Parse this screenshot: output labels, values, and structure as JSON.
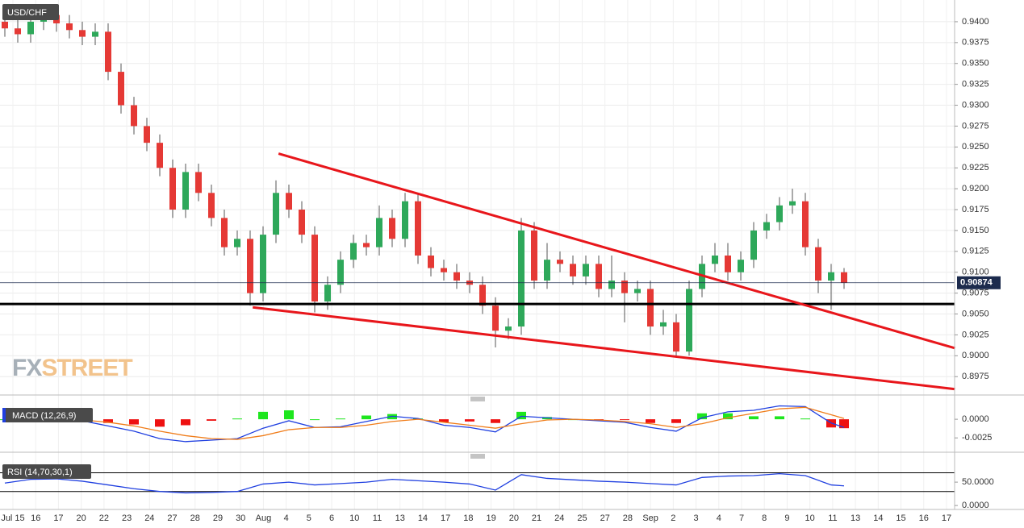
{
  "chart_data": [
    {
      "type": "candlestick",
      "title": "USD/CHF",
      "watermark": [
        "FX",
        "STREET"
      ],
      "open": [
        0.94,
        0.9392,
        0.9385,
        0.94,
        0.9408,
        0.9398,
        0.939,
        0.9382,
        0.9388,
        0.934,
        0.93,
        0.9275,
        0.9255,
        0.9225,
        0.9175,
        0.922,
        0.9195,
        0.9165,
        0.913,
        0.914,
        0.9075,
        0.9145,
        0.9195,
        0.9175,
        0.9145,
        0.9065,
        0.9085,
        0.9115,
        0.9135,
        0.913,
        0.9165,
        0.914,
        0.9185,
        0.912,
        0.9105,
        0.91,
        0.909,
        0.9085,
        0.906,
        0.903,
        0.9035,
        0.915,
        0.909,
        0.9115,
        0.911,
        0.9095,
        0.911,
        0.908,
        0.909,
        0.9075,
        0.908,
        0.9035,
        0.904,
        0.9005,
        0.908,
        0.911,
        0.912,
        0.91,
        0.9115,
        0.915,
        0.916,
        0.918,
        0.9185,
        0.913,
        0.909,
        0.91
      ],
      "high": [
        0.941,
        0.9402,
        0.941,
        0.942,
        0.9418,
        0.9408,
        0.94,
        0.9398,
        0.9398,
        0.935,
        0.931,
        0.9285,
        0.9265,
        0.9235,
        0.923,
        0.923,
        0.9205,
        0.9175,
        0.915,
        0.915,
        0.9155,
        0.921,
        0.9205,
        0.9185,
        0.9155,
        0.9095,
        0.9125,
        0.9145,
        0.9145,
        0.918,
        0.9175,
        0.9195,
        0.9195,
        0.913,
        0.9115,
        0.911,
        0.91,
        0.9095,
        0.907,
        0.9045,
        0.9165,
        0.916,
        0.9135,
        0.9125,
        0.912,
        0.912,
        0.912,
        0.912,
        0.91,
        0.909,
        0.909,
        0.9055,
        0.905,
        0.909,
        0.912,
        0.9135,
        0.9135,
        0.9125,
        0.916,
        0.917,
        0.919,
        0.92,
        0.9195,
        0.914,
        0.911,
        0.9105
      ],
      "low": [
        0.9382,
        0.9375,
        0.9375,
        0.939,
        0.9388,
        0.938,
        0.9372,
        0.9372,
        0.933,
        0.929,
        0.9265,
        0.9245,
        0.9215,
        0.9165,
        0.9165,
        0.9185,
        0.9155,
        0.912,
        0.912,
        0.906,
        0.9065,
        0.9135,
        0.9165,
        0.9135,
        0.9052,
        0.9055,
        0.9075,
        0.9105,
        0.912,
        0.912,
        0.913,
        0.913,
        0.911,
        0.9095,
        0.909,
        0.908,
        0.9075,
        0.905,
        0.901,
        0.902,
        0.9025,
        0.908,
        0.908,
        0.91,
        0.9085,
        0.9085,
        0.907,
        0.907,
        0.904,
        0.9065,
        0.9025,
        0.9025,
        0.8998,
        0.9,
        0.907,
        0.91,
        0.909,
        0.909,
        0.9105,
        0.914,
        0.915,
        0.917,
        0.912,
        0.9075,
        0.9055,
        0.908
      ],
      "close": [
        0.9392,
        0.9385,
        0.94,
        0.9408,
        0.9398,
        0.939,
        0.9382,
        0.9388,
        0.934,
        0.93,
        0.9275,
        0.9255,
        0.9225,
        0.9175,
        0.922,
        0.9195,
        0.9165,
        0.913,
        0.914,
        0.9075,
        0.9145,
        0.9195,
        0.9175,
        0.9145,
        0.9065,
        0.9085,
        0.9115,
        0.9135,
        0.913,
        0.9165,
        0.914,
        0.9185,
        0.912,
        0.9105,
        0.91,
        0.909,
        0.9085,
        0.906,
        0.903,
        0.9035,
        0.915,
        0.909,
        0.9115,
        0.911,
        0.9095,
        0.911,
        0.908,
        0.909,
        0.9075,
        0.908,
        0.9035,
        0.904,
        0.9005,
        0.908,
        0.911,
        0.912,
        0.91,
        0.9115,
        0.915,
        0.916,
        0.918,
        0.9185,
        0.913,
        0.909,
        0.91,
        0.90874
      ],
      "up_color": "#2ea85a",
      "down_color": "#e53935",
      "ylim": [
        0.8953,
        0.9426
      ],
      "yticks": [
        {
          "value": 0.94,
          "label": "0.9400"
        },
        {
          "value": 0.9375,
          "label": "0.9375"
        },
        {
          "value": 0.935,
          "label": "0.9350"
        },
        {
          "value": 0.9325,
          "label": "0.9325"
        },
        {
          "value": 0.93,
          "label": "0.9300"
        },
        {
          "value": 0.9275,
          "label": "0.9275"
        },
        {
          "value": 0.925,
          "label": "0.9250"
        },
        {
          "value": 0.9225,
          "label": "0.9225"
        },
        {
          "value": 0.92,
          "label": "0.9200"
        },
        {
          "value": 0.9175,
          "label": "0.9175"
        },
        {
          "value": 0.915,
          "label": "0.9150"
        },
        {
          "value": 0.9125,
          "label": "0.9125"
        },
        {
          "value": 0.91,
          "label": "0.9100"
        },
        {
          "value": 0.9075,
          "label": "0.9075"
        },
        {
          "value": 0.905,
          "label": "0.9050"
        },
        {
          "value": 0.9025,
          "label": "0.9025"
        },
        {
          "value": 0.9,
          "label": "0.9000"
        },
        {
          "value": 0.8975,
          "label": "0.8975"
        }
      ],
      "last_price": 0.90874,
      "last_price_color": "#1c2b4d",
      "trend_lines": [
        {
          "x": [
            21.2,
            73.6
          ],
          "y": [
            0.9242,
            0.9009
          ],
          "color": "#e8161b"
        },
        {
          "x": [
            19.2,
            73.6
          ],
          "y": [
            0.9058,
            0.896
          ],
          "color": "#e8161b"
        }
      ],
      "hline": {
        "y": 0.9062,
        "color": "#000000"
      },
      "grid": true
    },
    {
      "type": "macd",
      "title": "MACD (12,26,9)",
      "x": [
        0,
        2,
        4,
        6,
        8,
        10,
        12,
        14,
        16,
        18,
        20,
        22,
        24,
        26,
        28,
        30,
        32,
        34,
        36,
        38,
        40,
        42,
        44,
        46,
        48,
        50,
        52,
        54,
        56,
        58,
        60,
        62,
        64,
        65
      ],
      "series": [
        {
          "color": "#1f3fe0",
          "values": [
            0,
            0.0001,
            0,
            -0.0002,
            -0.0009,
            -0.0016,
            -0.0026,
            -0.003,
            -0.0028,
            -0.0026,
            -0.0012,
            -0.0002,
            -0.0011,
            -0.001,
            -0.0003,
            0.0004,
            0.0001,
            -0.0008,
            -0.0011,
            -0.0017,
            0.0004,
            0.0002,
            0,
            -0.0002,
            -0.0004,
            -0.0011,
            -0.0016,
            0.0002,
            0.001,
            0.0012,
            0.0018,
            0.0017,
            -0.0005,
            -0.0011
          ]
        },
        {
          "color": "#f07d1a",
          "values": [
            0,
            0,
            0,
            -0.0001,
            -0.0004,
            -0.0009,
            -0.0016,
            -0.0022,
            -0.0026,
            -0.0027,
            -0.0022,
            -0.0014,
            -0.0011,
            -0.0011,
            -0.0008,
            -0.0003,
            0,
            -0.0004,
            -0.0008,
            -0.0012,
            -0.0006,
            -0.0001,
            0,
            -0.0001,
            -0.0003,
            -0.0006,
            -0.0011,
            -0.0006,
            0.0002,
            0.0008,
            0.0014,
            0.0016,
            0.0006,
            0.0001
          ]
        }
      ],
      "histogram": [
        0,
        0.0001,
        0,
        -0.0001,
        -0.0005,
        -0.0007,
        -0.001,
        -0.0008,
        -0.0002,
        0.0001,
        0.001,
        0.0012,
        0,
        0.0001,
        0.0005,
        0.0007,
        0.0001,
        -0.0004,
        -0.0003,
        -0.0005,
        0.001,
        0.0003,
        0,
        -0.0001,
        -0.0001,
        -0.0005,
        -0.0005,
        0.0008,
        0.0008,
        0.0004,
        0.0004,
        0.0001,
        -0.0011,
        -0.0012
      ],
      "up_color": "#1ee61e",
      "down_color": "#ee1111",
      "ylim": [
        -0.0041,
        0.0025
      ],
      "yticks": [
        {
          "value": 0,
          "label": "0.0000"
        },
        {
          "value": -0.0025,
          "label": "-0.0025"
        }
      ]
    },
    {
      "type": "line",
      "title": "RSI (14,70,30,1)",
      "x": [
        0,
        2,
        4,
        6,
        8,
        10,
        12,
        14,
        16,
        18,
        20,
        22,
        24,
        26,
        28,
        30,
        32,
        34,
        36,
        38,
        40,
        42,
        44,
        46,
        48,
        50,
        52,
        54,
        56,
        58,
        60,
        62,
        64,
        65
      ],
      "series": [
        {
          "color": "#1f3fe0",
          "values": [
            48,
            56,
            57,
            52,
            44,
            36,
            30,
            27,
            28,
            30,
            46,
            50,
            44,
            47,
            50,
            56,
            53,
            50,
            46,
            33,
            66,
            58,
            55,
            52,
            50,
            47,
            44,
            60,
            63,
            64,
            68,
            64,
            44,
            42
          ]
        }
      ],
      "levels": [
        70,
        30
      ],
      "ylim": [
        -5,
        95
      ],
      "yticks": [
        {
          "value": 50,
          "label": "50.0000"
        },
        {
          "value": 0,
          "label": "0.0000"
        }
      ],
      "date_labels": [
        "Jul 15",
        "16",
        "17",
        "20",
        "22",
        "23",
        "24",
        "27",
        "28",
        "29",
        "30",
        "Aug",
        "4",
        "5",
        "6",
        "10",
        "11",
        "13",
        "14",
        "17",
        "18",
        "19",
        "20",
        "21",
        "24",
        "25",
        "27",
        "28",
        "Sep",
        "2",
        "3",
        "4",
        "7",
        "8",
        "9",
        "10",
        "11",
        "13",
        "14",
        "15",
        "16",
        "17"
      ]
    }
  ]
}
